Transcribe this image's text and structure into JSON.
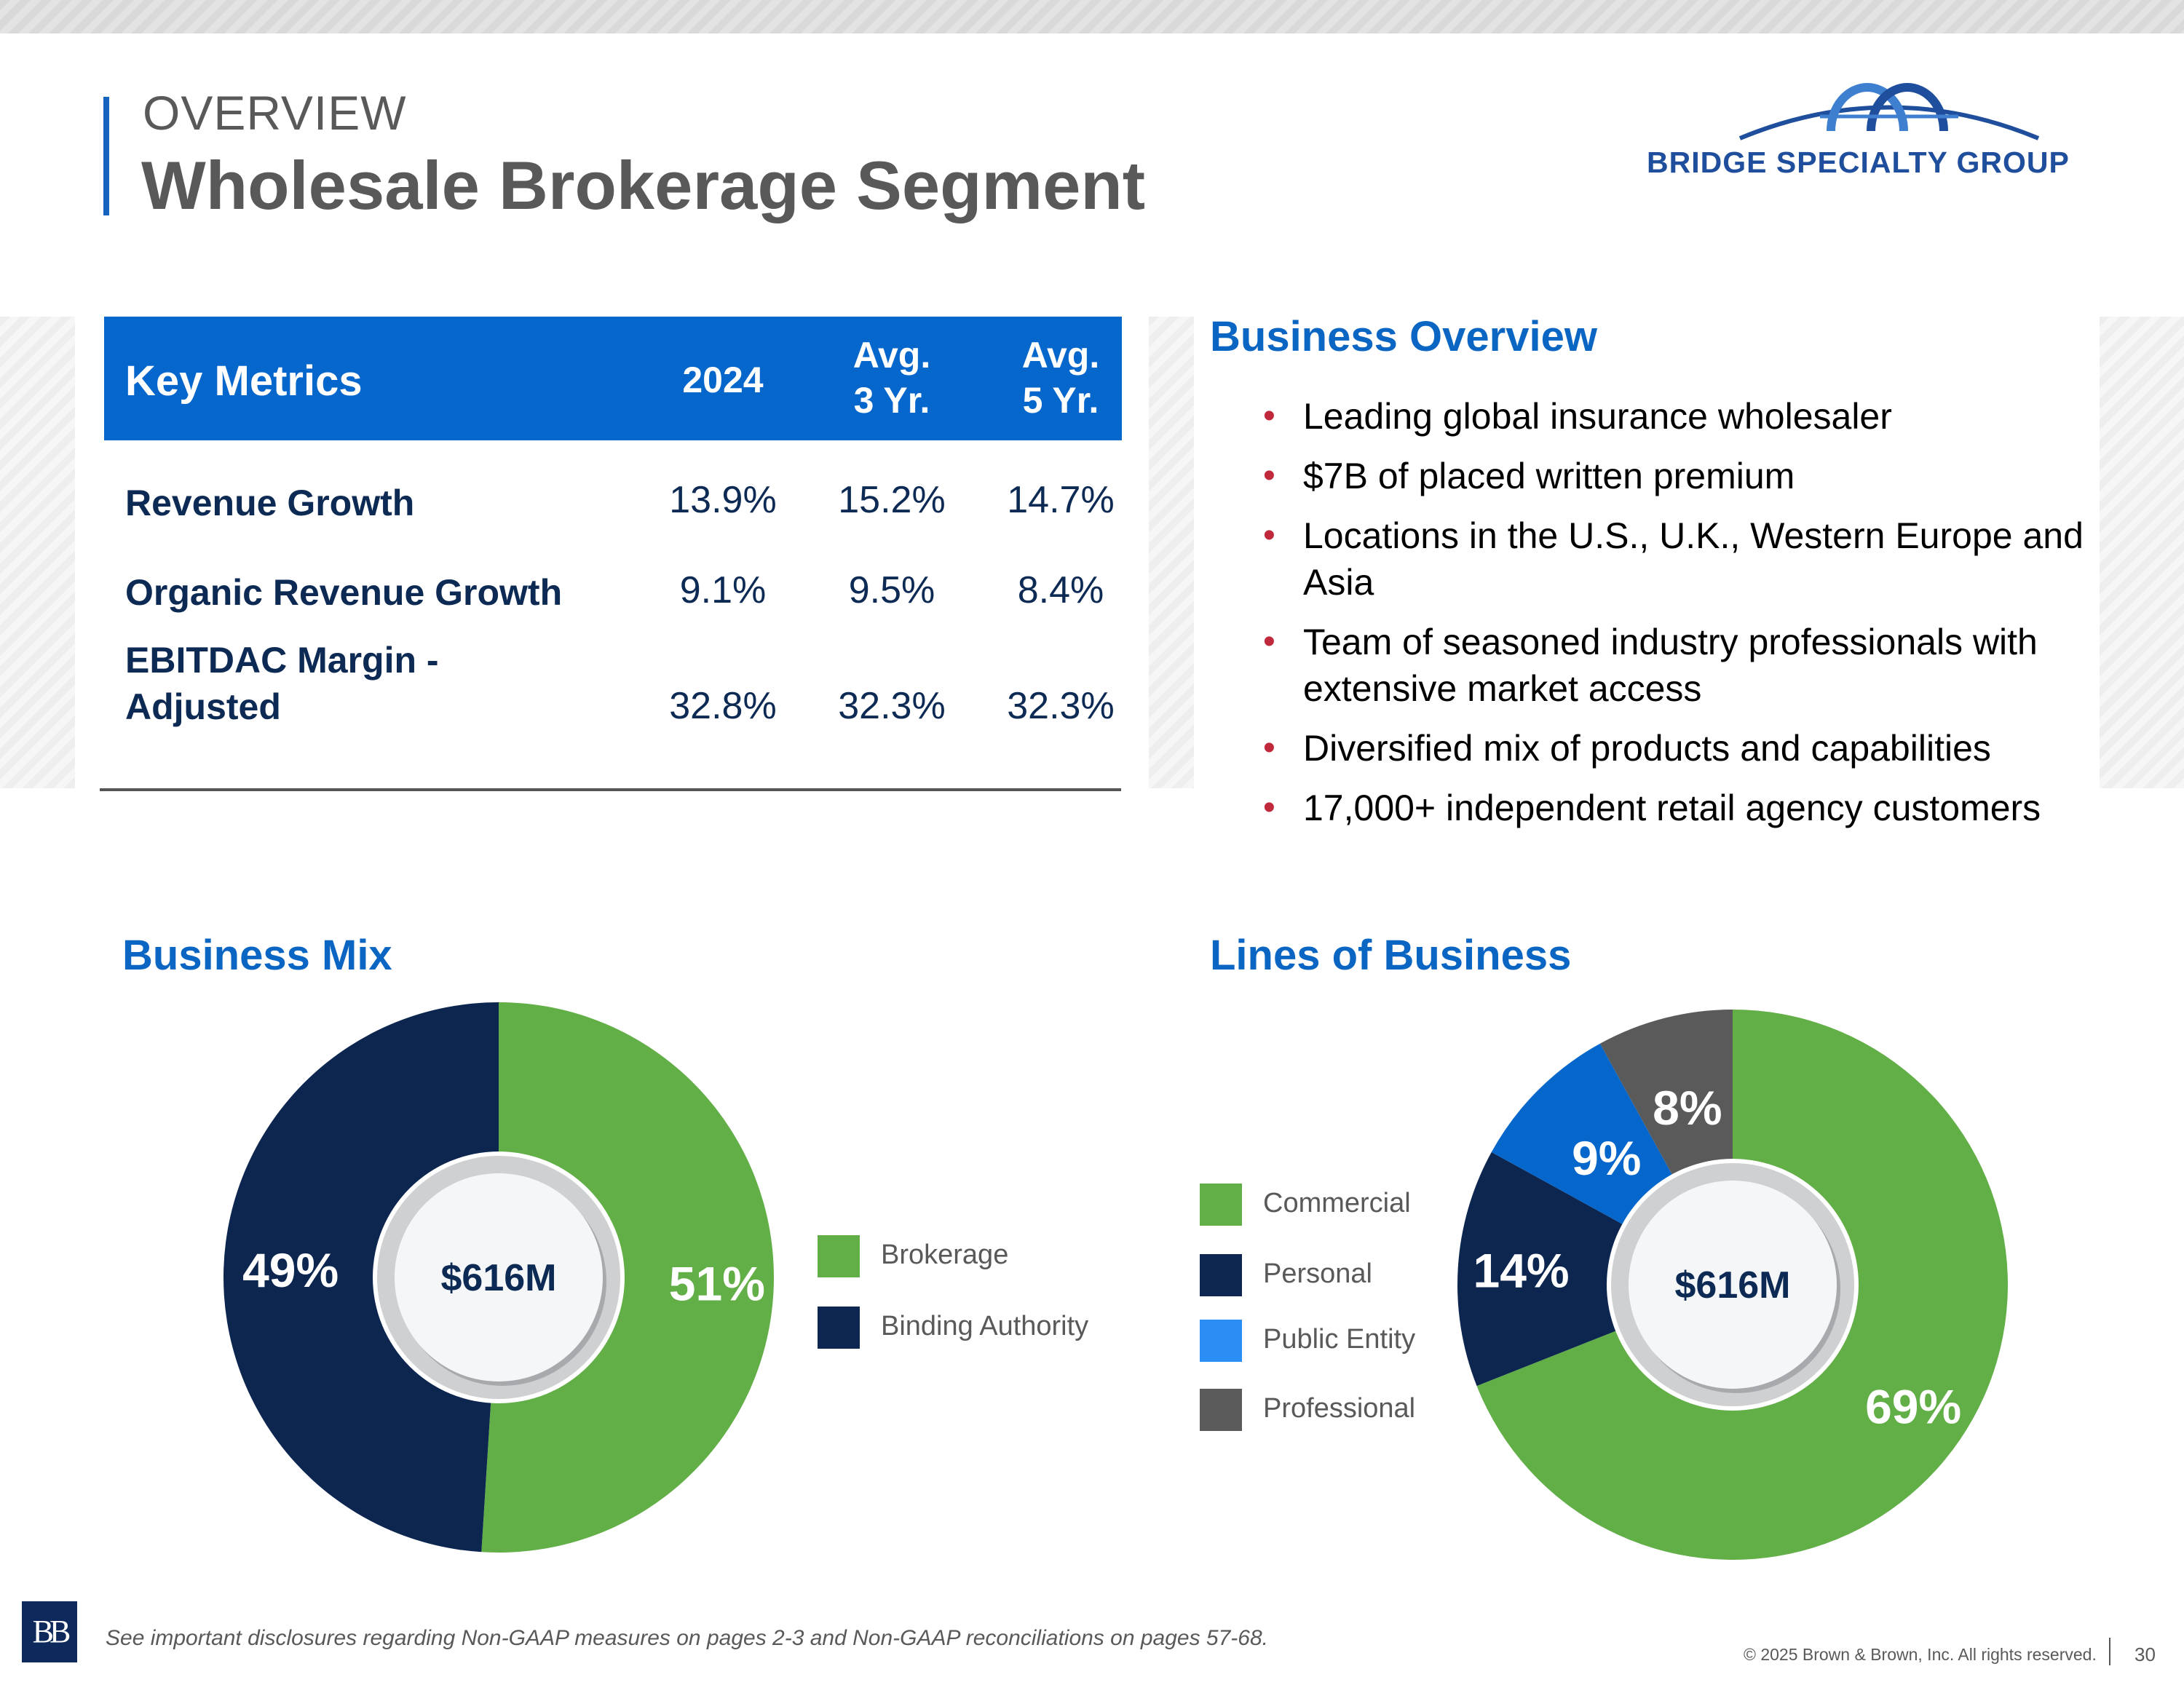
{
  "header": {
    "overline": "OVERVIEW",
    "title": "Wholesale Brokerage Segment",
    "brand_logo_text": "BRIDGE SPECIALTY GROUP"
  },
  "metrics_table": {
    "headers": {
      "label": "Key Metrics",
      "col1": "2024",
      "col2_line1": "Avg.",
      "col2_line2": "3 Yr.",
      "col3_line1": "Avg.",
      "col3_line2": "5 Yr."
    },
    "rows": [
      {
        "label": "Revenue Growth",
        "v2024": "13.9%",
        "avg3": "15.2%",
        "avg5": "14.7%"
      },
      {
        "label": "Organic Revenue Growth",
        "v2024": "9.1%",
        "avg3": "9.5%",
        "avg5": "8.4%"
      },
      {
        "label_line1": "EBITDAC Margin -",
        "label_line2": "Adjusted",
        "v2024": "32.8%",
        "avg3": "32.3%",
        "avg5": "32.3%"
      }
    ]
  },
  "business_overview": {
    "heading": "Business Overview",
    "bullets": [
      "Leading global insurance wholesaler",
      "$7B of placed written premium",
      "Locations in the U.S., U.K., Western Europe and Asia",
      "Team of seasoned industry professionals with extensive market access",
      "Diversified mix of products and capabilities",
      "17,000+ independent retail agency customers"
    ]
  },
  "business_mix": {
    "heading": "Business Mix"
  },
  "lines_of_business": {
    "heading": "Lines of Business"
  },
  "chart_data": [
    {
      "type": "pie",
      "variant": "donut",
      "title": "Business Mix",
      "center_label": "$616M",
      "categories": [
        "Brokerage",
        "Binding Authority"
      ],
      "values": [
        51,
        49
      ],
      "labels": [
        "51%",
        "49%"
      ],
      "colors": [
        "#62ae47",
        "#0c2650"
      ],
      "legend_position": "right"
    },
    {
      "type": "pie",
      "variant": "donut",
      "title": "Lines of Business",
      "center_label": "$616M",
      "categories": [
        "Commercial",
        "Personal",
        "Public Entity",
        "Professional"
      ],
      "values": [
        69,
        14,
        9,
        8
      ],
      "labels": [
        "69%",
        "14%",
        "9%",
        "8%"
      ],
      "colors": [
        "#62ae47",
        "#0c2650",
        "#0566cc",
        "#5a5a5a"
      ],
      "legend_colors": [
        "#62ae47",
        "#0c2650",
        "#2a8ef5",
        "#5a5a5a"
      ],
      "legend_position": "left"
    }
  ],
  "footer": {
    "disclosure": "See important disclosures regarding Non-GAAP measures on pages 2-3 and Non-GAAP reconciliations on pages 57-68.",
    "copyright": "© 2025 Brown & Brown, Inc. All rights reserved.",
    "page_number": "30",
    "company_logo_text": "BB"
  }
}
